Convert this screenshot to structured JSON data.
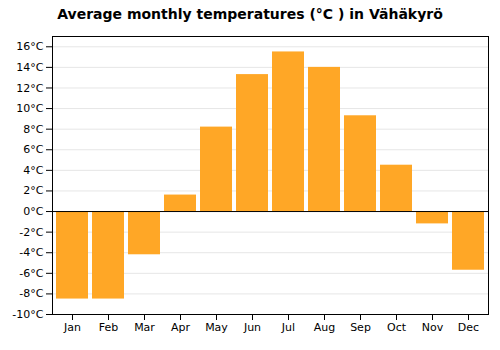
{
  "chart_data": {
    "type": "bar",
    "title": "Average monthly temperatures (°C ) in Vähäkyrö",
    "categories": [
      "Jan",
      "Feb",
      "Mar",
      "Apr",
      "May",
      "Jun",
      "Jul",
      "Aug",
      "Sep",
      "Oct",
      "Nov",
      "Dec"
    ],
    "values": [
      -8.5,
      -8.5,
      -4.2,
      1.6,
      8.2,
      13.3,
      15.5,
      14.0,
      9.3,
      4.5,
      -1.2,
      -5.7
    ],
    "color": "#FFA726",
    "ylim": [
      -10,
      17
    ],
    "yticks": [
      {
        "value": -10,
        "label": "-10°C"
      },
      {
        "value": -8,
        "label": "-8°C"
      },
      {
        "value": -6,
        "label": "-6°C"
      },
      {
        "value": -4,
        "label": "-4°C"
      },
      {
        "value": -2,
        "label": "-2°C"
      },
      {
        "value": 0,
        "label": "0°C"
      },
      {
        "value": 2,
        "label": "2°C"
      },
      {
        "value": 4,
        "label": "4°C"
      },
      {
        "value": 6,
        "label": "6°C"
      },
      {
        "value": 8,
        "label": "8°C"
      },
      {
        "value": 10,
        "label": "10°C"
      },
      {
        "value": 12,
        "label": "12°C"
      },
      {
        "value": 14,
        "label": "14°C"
      },
      {
        "value": 16,
        "label": "16°C"
      }
    ],
    "grid": true
  }
}
